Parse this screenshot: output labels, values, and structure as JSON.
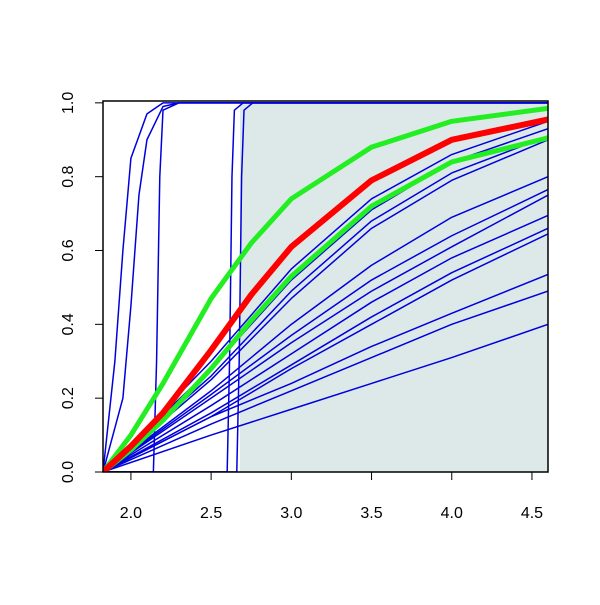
{
  "chart_data": {
    "type": "line",
    "xlim": [
      1.826,
      4.6
    ],
    "ylim": [
      0,
      1.005
    ],
    "xticks": [
      {
        "value": 2,
        "label": "2.0"
      },
      2.5,
      {
        "value": 3,
        "label": "3.0"
      },
      3.5,
      {
        "value": 4,
        "label": "4.0"
      },
      4.5
    ],
    "yticks": [
      {
        "value": 0,
        "label": "0.0"
      },
      0.2,
      0.4,
      0.6,
      0.8,
      {
        "value": 1,
        "label": "1.0"
      }
    ],
    "shaded_region": {
      "x": [
        2.68,
        4.6
      ],
      "color": "#dde9e9"
    },
    "series": [
      {
        "color": "#0000dd",
        "width": 1.5,
        "x": [
          1.826,
          1.9,
          1.95,
          2.0,
          2.1,
          2.2,
          4.6
        ],
        "values": [
          0,
          0.3,
          0.6,
          0.85,
          0.97,
          1.0,
          1.0
        ]
      },
      {
        "color": "#0000dd",
        "width": 1.5,
        "x": [
          1.826,
          1.95,
          2.0,
          2.05,
          2.1,
          2.2,
          2.3,
          4.6
        ],
        "values": [
          0,
          0.2,
          0.45,
          0.75,
          0.9,
          0.99,
          1.0,
          1.0
        ]
      },
      {
        "color": "#0000dd",
        "width": 1.5,
        "x": [
          1.826,
          2.14,
          2.16,
          2.18,
          2.2,
          2.3,
          4.6
        ],
        "values": [
          0,
          0,
          0.3,
          0.8,
          0.98,
          1.0,
          1.0
        ]
      },
      {
        "color": "#0000dd",
        "width": 1.5,
        "x": [
          1.826,
          2.6,
          2.615,
          2.63,
          2.645,
          2.7,
          4.6
        ],
        "values": [
          0,
          0,
          0.3,
          0.8,
          0.98,
          1.0,
          1.0
        ]
      },
      {
        "color": "#0000dd",
        "width": 1.5,
        "x": [
          1.826,
          2.66,
          2.675,
          2.69,
          2.705,
          2.76,
          4.6
        ],
        "values": [
          0,
          0,
          0.3,
          0.8,
          0.98,
          1.0,
          1.0
        ]
      },
      {
        "color": "#0000dd",
        "width": 1.5,
        "x": [
          1.826,
          2.5,
          3.0,
          3.5,
          4.0,
          4.6
        ],
        "values": [
          0,
          0.3,
          0.55,
          0.74,
          0.86,
          0.95
        ]
      },
      {
        "color": "#0000dd",
        "width": 1.5,
        "x": [
          1.826,
          2.5,
          3.0,
          3.5,
          4.0,
          4.6
        ],
        "values": [
          0,
          0.28,
          0.52,
          0.71,
          0.84,
          0.93
        ]
      },
      {
        "color": "#0000dd",
        "width": 1.5,
        "x": [
          1.826,
          2.5,
          3.0,
          3.5,
          4.0,
          4.6
        ],
        "values": [
          0,
          0.26,
          0.49,
          0.68,
          0.81,
          0.91
        ]
      },
      {
        "color": "#0000dd",
        "width": 1.5,
        "x": [
          1.826,
          2.5,
          3.0,
          3.5,
          4.0,
          4.6
        ],
        "values": [
          0,
          0.25,
          0.47,
          0.66,
          0.79,
          0.9
        ]
      },
      {
        "color": "#0000dd",
        "width": 1.5,
        "x": [
          1.826,
          2.5,
          3.0,
          3.5,
          4.0,
          4.6
        ],
        "values": [
          0,
          0.22,
          0.4,
          0.56,
          0.69,
          0.8
        ]
      },
      {
        "color": "#0000dd",
        "width": 1.5,
        "x": [
          1.826,
          2.5,
          3.0,
          3.5,
          4.0,
          4.6
        ],
        "values": [
          0,
          0.21,
          0.37,
          0.52,
          0.64,
          0.765
        ]
      },
      {
        "color": "#0000dd",
        "width": 1.5,
        "x": [
          1.826,
          2.5,
          3.0,
          3.5,
          4.0,
          4.6
        ],
        "values": [
          0,
          0.2,
          0.35,
          0.49,
          0.61,
          0.75
        ]
      },
      {
        "color": "#0000dd",
        "width": 1.5,
        "x": [
          1.826,
          2.5,
          3.0,
          3.5,
          4.0,
          4.6
        ],
        "values": [
          0,
          0.18,
          0.32,
          0.46,
          0.58,
          0.695
        ]
      },
      {
        "color": "#0000dd",
        "width": 1.5,
        "x": [
          1.826,
          2.5,
          3.0,
          3.5,
          4.0,
          4.6
        ],
        "values": [
          0,
          0.16,
          0.29,
          0.42,
          0.54,
          0.66
        ]
      },
      {
        "color": "#0000dd",
        "width": 1.5,
        "x": [
          1.826,
          2.5,
          3.0,
          3.5,
          4.0,
          4.6
        ],
        "values": [
          0,
          0.15,
          0.28,
          0.4,
          0.52,
          0.645
        ]
      },
      {
        "color": "#0000dd",
        "width": 1.5,
        "x": [
          1.826,
          2.5,
          3.0,
          3.5,
          4.0,
          4.6
        ],
        "values": [
          0,
          0.15,
          0.24,
          0.34,
          0.43,
          0.535
        ]
      },
      {
        "color": "#0000dd",
        "width": 1.5,
        "x": [
          1.826,
          2.5,
          3.0,
          3.5,
          4.0,
          4.6
        ],
        "values": [
          0,
          0.13,
          0.22,
          0.31,
          0.4,
          0.49
        ]
      },
      {
        "color": "#0000dd",
        "width": 1.5,
        "x": [
          1.826,
          2.5,
          3.0,
          3.5,
          4.0,
          4.6
        ],
        "values": [
          0,
          0.1,
          0.17,
          0.24,
          0.31,
          0.4
        ]
      },
      {
        "color": "#22ee22",
        "width": 5,
        "x": [
          1.826,
          2.0,
          2.2,
          2.5,
          2.75,
          3.0,
          3.5,
          4.0,
          4.6
        ],
        "values": [
          0,
          0.1,
          0.24,
          0.47,
          0.62,
          0.74,
          0.88,
          0.95,
          0.985
        ]
      },
      {
        "color": "#22ee22",
        "width": 5,
        "x": [
          1.826,
          2.0,
          2.2,
          2.5,
          2.75,
          3.0,
          3.5,
          4.0,
          4.6
        ],
        "values": [
          0,
          0.06,
          0.14,
          0.28,
          0.41,
          0.53,
          0.72,
          0.84,
          0.905
        ]
      },
      {
        "color": "#ff0000",
        "width": 6,
        "x": [
          1.826,
          2.0,
          2.2,
          2.5,
          2.75,
          3.0,
          3.5,
          4.0,
          4.6
        ],
        "values": [
          0,
          0.07,
          0.16,
          0.33,
          0.48,
          0.61,
          0.79,
          0.9,
          0.955
        ]
      }
    ]
  }
}
